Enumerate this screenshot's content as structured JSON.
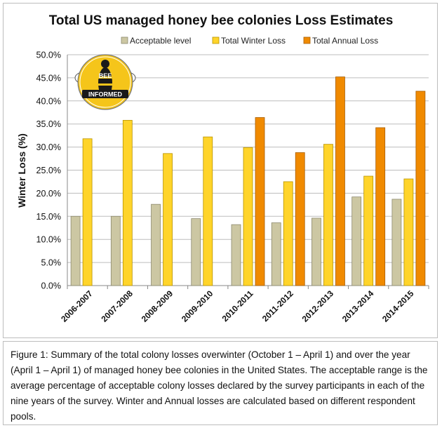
{
  "colors": {
    "acceptable_fill": "#ccc7a3",
    "acceptable_stroke": "#8d8a6e",
    "winter_fill": "#ffd42a",
    "winter_stroke": "#b89300",
    "annual_fill": "#f08a00",
    "annual_stroke": "#a85e00",
    "gridline": "#bdbdbd",
    "logo_ring": "#f5c51a"
  },
  "logo": {
    "top_text": "BEE",
    "bottom_text": "INFORMED",
    "icon": "bee-informed-logo"
  },
  "chart_data": {
    "type": "bar",
    "title": "Total US managed honey bee colonies Loss Estimates",
    "ylabel": "Winter Loss (%)",
    "xlabel": "",
    "ylim": [
      0,
      50
    ],
    "ytick_step": 5,
    "ytick_labels": [
      "0.0%",
      "5.0%",
      "10.0%",
      "15.0%",
      "20.0%",
      "25.0%",
      "30.0%",
      "35.0%",
      "40.0%",
      "45.0%",
      "50.0%"
    ],
    "legend_position": "top",
    "grid": true,
    "categories": [
      "2006-2007",
      "2007-2008",
      "2008-2009",
      "2009-2010",
      "2010-2011",
      "2011-2012",
      "2012-2013",
      "2013-2014",
      "2014-2015"
    ],
    "series": [
      {
        "name": "Acceptable level",
        "key": "acceptable",
        "values": [
          15.0,
          15.0,
          17.6,
          14.5,
          13.2,
          13.6,
          14.6,
          19.2,
          18.7
        ]
      },
      {
        "name": "Total Winter Loss",
        "key": "winter",
        "values": [
          31.8,
          35.8,
          28.6,
          32.2,
          29.9,
          22.5,
          30.6,
          23.7,
          23.1
        ]
      },
      {
        "name": "Total Annual Loss",
        "key": "annual",
        "values": [
          null,
          null,
          null,
          null,
          36.4,
          28.8,
          45.2,
          34.2,
          42.1
        ]
      }
    ]
  },
  "caption": {
    "text": "Figure 1: Summary of the total colony losses overwinter (October 1 – April 1) and over the year (April 1 – April 1) of managed honey bee colonies in the United States. The acceptable range is the average percentage of acceptable colony losses declared by the survey participants in each of the nine years of the survey. Winter and Annual losses are calculated based on different respondent pools."
  }
}
